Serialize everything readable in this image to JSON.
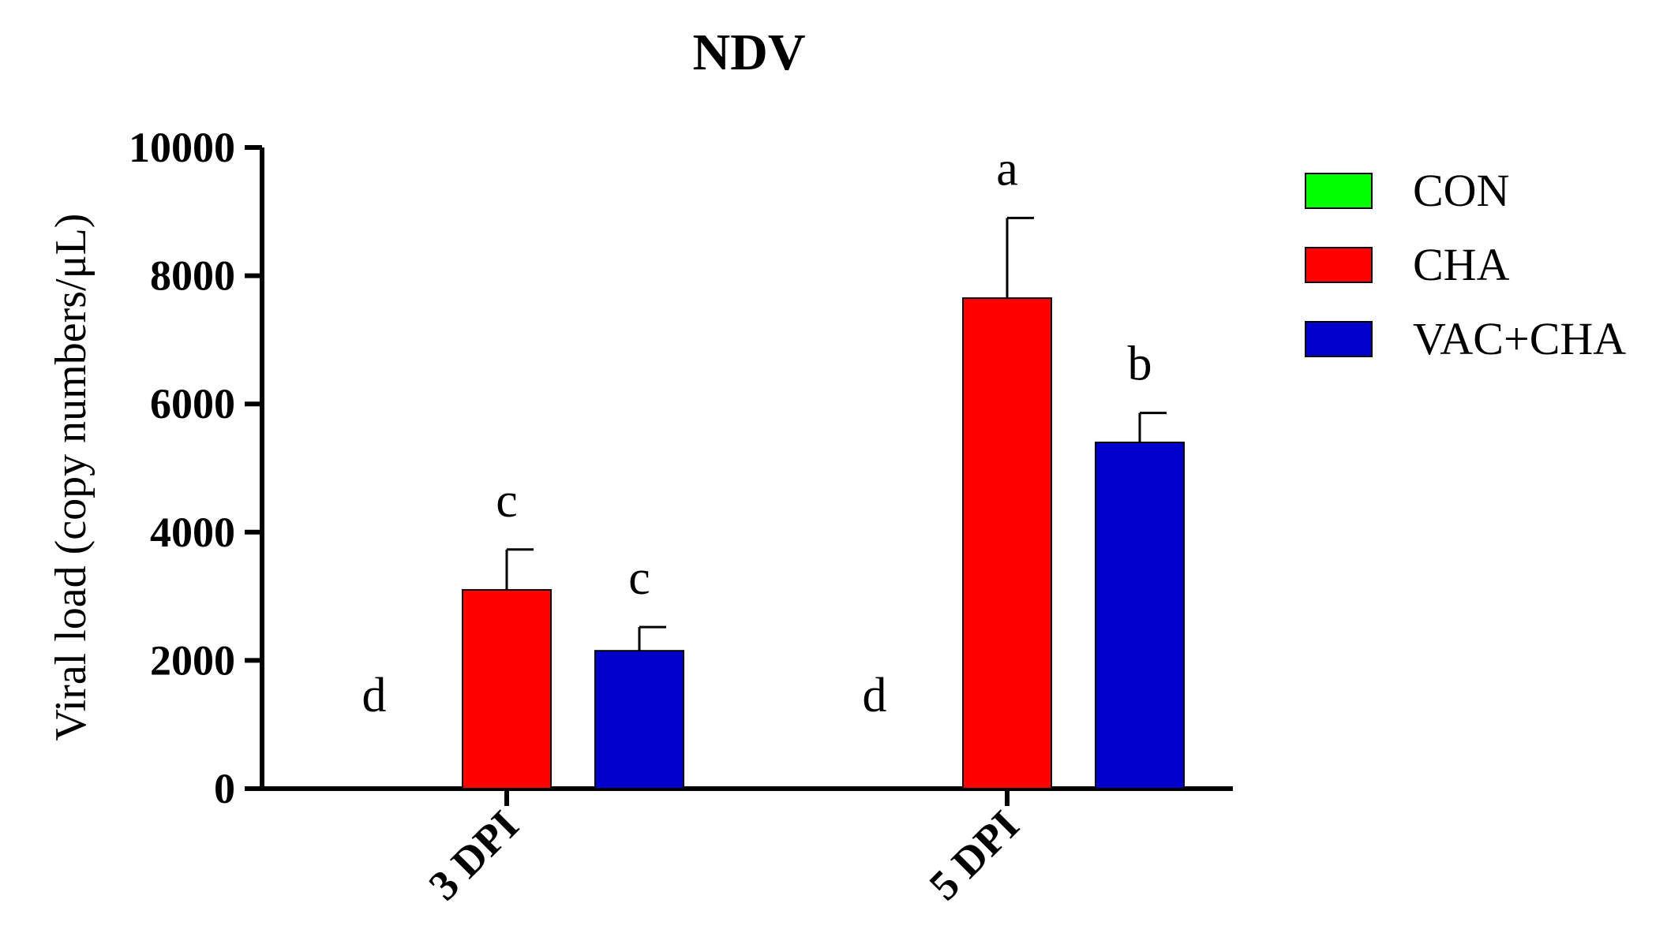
{
  "chart_data": {
    "type": "bar",
    "title": "NDV",
    "xlabel": "",
    "ylabel": "Viral load (copy numbers/μL)",
    "ylim": [
      0,
      10000
    ],
    "yticks": [
      "0",
      "2000",
      "4000",
      "6000",
      "8000",
      "10000"
    ],
    "categories": [
      "3 DPI",
      "5 DPI"
    ],
    "legend_position": "right",
    "grid": false,
    "series": [
      {
        "name": "CON",
        "color": "#00ff00",
        "values": [
          0,
          0
        ],
        "errors": [
          0,
          0
        ],
        "significance": [
          "d",
          "d"
        ]
      },
      {
        "name": "CHA",
        "color": "#ff0000",
        "values": [
          3100,
          7650
        ],
        "errors": [
          630,
          1250
        ],
        "significance": [
          "c",
          "a"
        ]
      },
      {
        "name": "VAC+CHA",
        "color": "#0000cc",
        "values": [
          2150,
          5400
        ],
        "errors": [
          370,
          460
        ],
        "significance": [
          "c",
          "b"
        ]
      }
    ]
  }
}
